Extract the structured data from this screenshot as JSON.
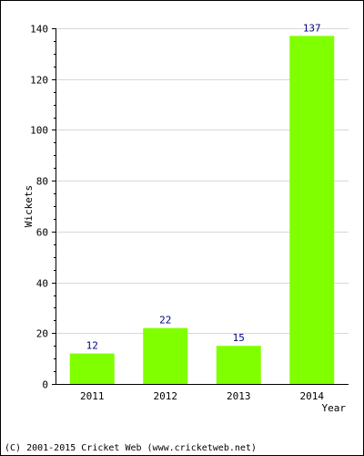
{
  "chart_data": {
    "type": "bar",
    "categories": [
      "2011",
      "2012",
      "2013",
      "2014"
    ],
    "values": [
      12,
      22,
      15,
      137
    ],
    "data_labels": [
      "12",
      "22",
      "15",
      "137"
    ],
    "xlabel": "Year",
    "ylabel": "Wickets",
    "ylim": [
      0,
      140
    ],
    "yticks": [
      0,
      20,
      40,
      60,
      80,
      100,
      120,
      140
    ],
    "grid": true,
    "legend": "none",
    "bar_color": "#80ff00",
    "label_color": "#000080",
    "grid_color": "#d8d8d8"
  },
  "footer": {
    "copyright": "(C) 2001-2015 Cricket Web (www.cricketweb.net)"
  }
}
